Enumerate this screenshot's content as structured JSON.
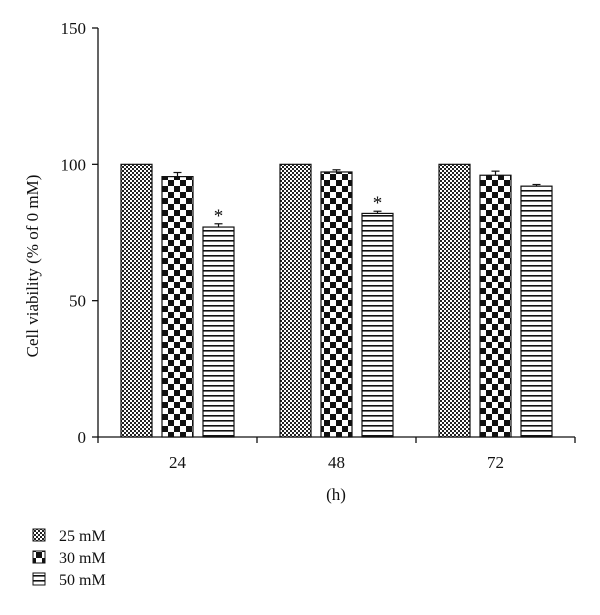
{
  "chart_data": {
    "type": "bar",
    "categories": [
      "24",
      "48",
      "72"
    ],
    "xlabel": "(h)",
    "ylabel": "Cell viability (% of 0 mM)",
    "ylim": [
      0,
      150
    ],
    "yticks": [
      0,
      50,
      100,
      150
    ],
    "grid": false,
    "legend_placement": "bottom-left",
    "series": [
      {
        "name": "25 mM",
        "pattern": "fine-checker",
        "values": [
          100,
          100,
          100
        ],
        "errors": [
          0,
          0,
          0
        ],
        "significance": [
          "",
          "",
          ""
        ]
      },
      {
        "name": "30 mM",
        "pattern": "coarse-checker",
        "values": [
          95.5,
          97.2,
          96.0
        ],
        "errors": [
          1.5,
          0.8,
          1.5
        ],
        "significance": [
          "",
          "",
          ""
        ]
      },
      {
        "name": "50 mM",
        "pattern": "horizontal-stripes",
        "values": [
          77.0,
          82.0,
          92.0
        ],
        "errors": [
          1.2,
          0.8,
          0.6
        ],
        "significance": [
          "*",
          "*",
          ""
        ]
      }
    ]
  }
}
